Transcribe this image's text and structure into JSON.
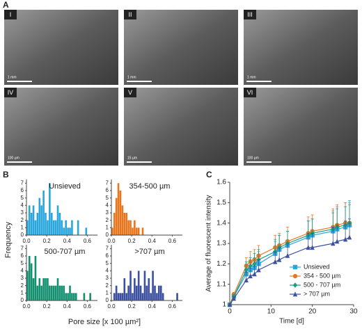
{
  "figure": {
    "panel_labels": [
      "A",
      "B",
      "C"
    ],
    "images": [
      {
        "label": "I",
        "scale": "1 mm"
      },
      {
        "label": "II",
        "scale": "1 mm"
      },
      {
        "label": "III",
        "scale": "1 mm"
      },
      {
        "label": "IV",
        "scale": "100 µm"
      },
      {
        "label": "V",
        "scale": "15 µm"
      },
      {
        "label": "VI",
        "scale": "100 µm"
      }
    ],
    "histogram_xlabel": "Pore size [x 100 µm²]",
    "histogram_ylabel": "Frequency"
  },
  "chart_data": [
    {
      "type": "histogram",
      "title": "Unsieved",
      "color": "#2aa6dd",
      "bins": [
        0,
        0.02,
        0.04,
        0.06,
        0.08,
        0.1,
        0.12,
        0.14,
        0.16,
        0.18,
        0.2,
        0.22,
        0.24,
        0.26,
        0.28,
        0.3,
        0.32,
        0.34,
        0.36,
        0.38,
        0.4,
        0.42,
        0.44,
        0.46,
        0.48,
        0.5,
        0.52,
        0.54,
        0.56,
        0.58,
        0.6,
        0.62,
        0.64,
        0.66,
        0.68,
        0.7
      ],
      "counts": [
        2,
        4,
        3,
        4,
        2,
        3,
        5,
        4,
        6,
        3,
        2,
        7,
        3,
        2,
        2,
        4,
        3,
        2,
        1,
        2,
        1,
        1,
        2,
        0,
        0,
        2,
        0,
        0,
        0,
        1,
        0,
        0,
        0,
        0,
        0
      ],
      "xlim": [
        0,
        0.7
      ],
      "xticks": [
        {
          "value": 0,
          "label": "0.0"
        },
        0.2,
        0.4,
        0.6
      ],
      "ylim": [
        0,
        7.5
      ],
      "yticks": [
        0,
        1,
        2,
        3,
        4,
        5,
        6,
        7
      ]
    },
    {
      "type": "histogram",
      "title": "354-500 µm",
      "color": "#e8761e",
      "bins": [
        0,
        0.02,
        0.04,
        0.06,
        0.08,
        0.1,
        0.12,
        0.14,
        0.16,
        0.18,
        0.2,
        0.22,
        0.24,
        0.26,
        0.28,
        0.3,
        0.32,
        0.34,
        0.36,
        0.38,
        0.4,
        0.42,
        0.44,
        0.46,
        0.48,
        0.5,
        0.52,
        0.54,
        0.56,
        0.58,
        0.6,
        0.62,
        0.64,
        0.66,
        0.68,
        0.7
      ],
      "counts": [
        1,
        3,
        5,
        7,
        6,
        4,
        3,
        3,
        2,
        2,
        1,
        2,
        1,
        1,
        0,
        1,
        0,
        0,
        0,
        0,
        0,
        0,
        0,
        0,
        0,
        0,
        0,
        0,
        0,
        0,
        0,
        0,
        0,
        0,
        0
      ],
      "xlim": [
        0,
        0.7
      ],
      "xticks": [
        {
          "value": 0,
          "label": "0.0"
        },
        0.2,
        0.4,
        0.6
      ],
      "ylim": [
        0,
        7.5
      ],
      "yticks": [
        0,
        1,
        2,
        3,
        4,
        5,
        6,
        7
      ]
    },
    {
      "type": "histogram",
      "title": "500-707 µm",
      "color": "#13906f",
      "bins": [
        0,
        0.02,
        0.04,
        0.06,
        0.08,
        0.1,
        0.12,
        0.14,
        0.16,
        0.18,
        0.2,
        0.22,
        0.24,
        0.26,
        0.28,
        0.3,
        0.32,
        0.34,
        0.36,
        0.38,
        0.4,
        0.42,
        0.44,
        0.46,
        0.48,
        0.5,
        0.52,
        0.54,
        0.56,
        0.58,
        0.6,
        0.62,
        0.64,
        0.66,
        0.68,
        0.7
      ],
      "counts": [
        4,
        6,
        5,
        3,
        6,
        2,
        3,
        2,
        3,
        3,
        3,
        2,
        2,
        2,
        2,
        3,
        2,
        2,
        2,
        1,
        1,
        2,
        1,
        1,
        1,
        0,
        0,
        0,
        1,
        0,
        0,
        1,
        0,
        0,
        0
      ],
      "xlim": [
        0,
        0.7
      ],
      "xticks": [
        {
          "value": 0,
          "label": "0.0"
        },
        0.2,
        0.4,
        0.6
      ],
      "ylim": [
        0,
        7.5
      ],
      "yticks": [
        0,
        1,
        2,
        3,
        4,
        5,
        6,
        7
      ]
    },
    {
      "type": "histogram",
      "title": ">707 µm",
      "color": "#3b50a0",
      "bins": [
        0,
        0.02,
        0.04,
        0.06,
        0.08,
        0.1,
        0.12,
        0.14,
        0.16,
        0.18,
        0.2,
        0.22,
        0.24,
        0.26,
        0.28,
        0.3,
        0.32,
        0.34,
        0.36,
        0.38,
        0.4,
        0.42,
        0.44,
        0.46,
        0.48,
        0.5,
        0.52,
        0.54,
        0.56,
        0.58,
        0.6,
        0.62,
        0.64,
        0.66,
        0.68,
        0.7
      ],
      "counts": [
        0,
        1,
        2,
        1,
        1,
        1,
        3,
        1,
        2,
        4,
        1,
        3,
        2,
        4,
        2,
        1,
        4,
        2,
        3,
        1,
        4,
        2,
        1,
        2,
        2,
        1,
        0,
        0,
        0,
        0,
        0,
        0,
        1,
        0,
        0
      ],
      "xlim": [
        0,
        0.7
      ],
      "xticks": [
        {
          "value": 0,
          "label": "0.0"
        },
        0.2,
        0.4,
        0.6
      ],
      "ylim": [
        0,
        7.5
      ],
      "yticks": [
        0,
        1,
        2,
        3,
        4,
        5,
        6,
        7
      ]
    },
    {
      "type": "line",
      "xlabel": "Time [d]",
      "ylabel": "Average of fluorescent intensity",
      "x": [
        0,
        1,
        4,
        5,
        6,
        7,
        11,
        12,
        14,
        19,
        20,
        25,
        26,
        28,
        29
      ],
      "xlim": [
        0,
        30
      ],
      "xticks": [
        0,
        10,
        20,
        30
      ],
      "ylim": [
        1,
        1.6
      ],
      "yticks": [
        1,
        1.1,
        1.2,
        1.3,
        1.4,
        1.5,
        1.6
      ],
      "legend": "lower right",
      "series": [
        {
          "name": "Unsieved",
          "color": "#29a8df",
          "marker": "square",
          "values": [
            1,
            1.04,
            1.15,
            1.17,
            1.18,
            1.2,
            1.25,
            1.27,
            1.29,
            1.33,
            1.34,
            1.36,
            1.37,
            1.38,
            1.39
          ],
          "errors": [
            0,
            0.01,
            0.05,
            0.05,
            0.05,
            0.06,
            0.06,
            0.07,
            0.07,
            0.08,
            0.08,
            0.1,
            0.11,
            0.12,
            0.12
          ]
        },
        {
          "name": "354 - 500 µm",
          "color": "#e87722",
          "marker": "circle",
          "values": [
            1,
            1.05,
            1.19,
            1.21,
            1.22,
            1.24,
            1.28,
            1.29,
            1.31,
            1.35,
            1.36,
            1.38,
            1.39,
            1.4,
            1.4
          ],
          "errors": [
            0,
            0.01,
            0.04,
            0.05,
            0.05,
            0.05,
            0.06,
            0.06,
            0.07,
            0.08,
            0.08,
            0.09,
            0.1,
            0.1,
            0.1
          ]
        },
        {
          "name": "500 - 707 µm",
          "color": "#1a9b82",
          "marker": "diamond",
          "values": [
            1,
            1.04,
            1.17,
            1.19,
            1.2,
            1.22,
            1.26,
            1.28,
            1.3,
            1.34,
            1.35,
            1.37,
            1.38,
            1.39,
            1.4
          ],
          "errors": [
            0,
            0.01,
            0.04,
            0.04,
            0.05,
            0.05,
            0.06,
            0.06,
            0.06,
            0.07,
            0.07,
            0.08,
            0.09,
            0.09,
            0.09
          ]
        },
        {
          "name": "> 707 µm",
          "color": "#3f51a3",
          "marker": "triangle",
          "values": [
            1,
            1.03,
            1.12,
            1.14,
            1.15,
            1.17,
            1.21,
            1.22,
            1.24,
            1.28,
            1.28,
            1.3,
            1.31,
            1.32,
            1.33
          ],
          "errors": [
            0,
            0.01,
            0.04,
            0.04,
            0.04,
            0.05,
            0.05,
            0.06,
            0.06,
            0.07,
            0.07,
            0.08,
            0.08,
            0.09,
            0.09
          ]
        }
      ]
    }
  ]
}
